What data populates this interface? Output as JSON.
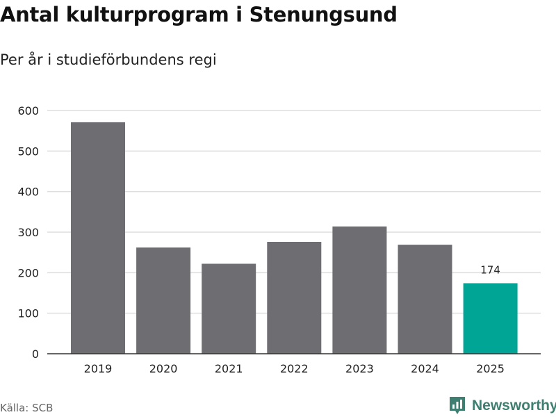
{
  "header": {
    "title": "Antal kulturprogram i Stenungsund",
    "subtitle": "Per år i studieförbundens regi"
  },
  "footer": {
    "source": "Källa: SCB",
    "brand": "Newsworthy"
  },
  "colors": {
    "bar": "#6e6d72",
    "highlight": "#00a596",
    "grid": "#dedede",
    "axis": "#333333",
    "brand": "#3f7f71"
  },
  "chart_data": {
    "type": "bar",
    "title": "Antal kulturprogram i Stenungsund",
    "subtitle": "Per år i studieförbundens regi",
    "categories": [
      "2019",
      "2020",
      "2021",
      "2022",
      "2023",
      "2024",
      "2025"
    ],
    "values": [
      571,
      262,
      222,
      276,
      314,
      269,
      174
    ],
    "highlight_index": 6,
    "data_labels": [
      {
        "index": 6,
        "text": "174"
      }
    ],
    "xlabel": "",
    "ylabel": "",
    "ylim": [
      0,
      600
    ],
    "yticks": [
      0,
      100,
      200,
      300,
      400,
      500,
      600
    ],
    "grid": true,
    "legend": "none"
  }
}
